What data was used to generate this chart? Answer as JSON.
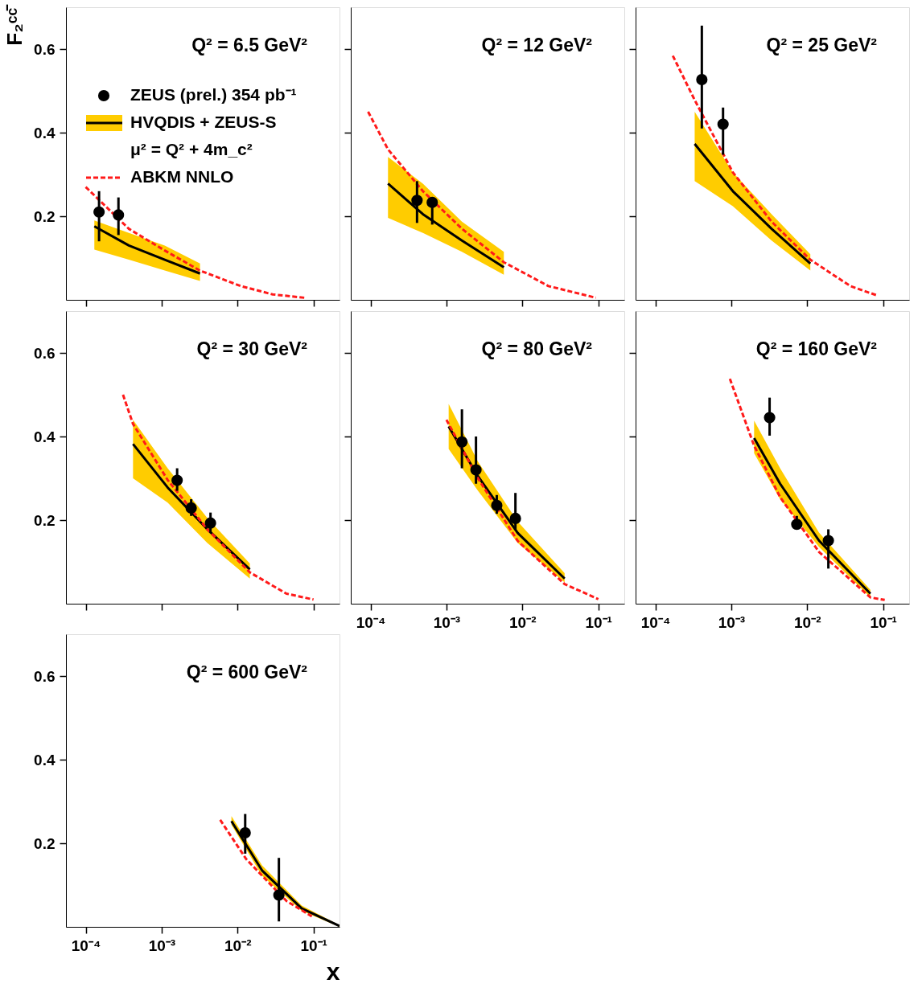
{
  "chart_data": [
    {
      "type": "line",
      "title": "Q² = 6.5 GeV²",
      "ylabel": "F₂ᶜᶜ̄",
      "log": "x",
      "xlim": [
        5.5e-05,
        0.22
      ],
      "ylim": [
        0,
        0.7
      ],
      "xticks": [
        {
          "value": 0.0001,
          "label": null
        },
        {
          "value": 0.001,
          "label": null
        },
        {
          "value": 0.01,
          "label": null
        },
        {
          "value": 0.1,
          "label": null
        }
      ],
      "yticks": [
        0.2,
        0.4,
        0.6
      ],
      "tick_labels": "y",
      "legend": "top left",
      "annotations": [
        "μ² = Q² + 4m_c²"
      ],
      "series": [
        {
          "name": "ZEUS (prel.) 354 pb⁻¹",
          "type": "scatter",
          "marker": "circle",
          "color": "#000000",
          "x": [
            0.00015,
            0.00027
          ],
          "values": [
            0.21,
            0.203
          ],
          "errors": [
            [
              0.14,
              0.26
            ],
            [
              0.155,
              0.245
            ]
          ]
        },
        {
          "name": "HVQDIS + ZEUS-S",
          "type": "line",
          "color": "#000000",
          "x": [
            0.00013,
            0.00037,
            0.0011,
            0.0032
          ],
          "values": [
            0.176,
            0.13,
            0.096,
            0.063
          ],
          "lower": [
            0.12,
            0.096,
            0.07,
            0.045
          ],
          "upper": [
            0.19,
            0.16,
            0.13,
            0.087
          ]
        },
        {
          "name": "ABKM NNLO",
          "type": "line",
          "line_style": "dashed",
          "color": "#ff1a1a",
          "x": [
            0.0001,
            0.00037,
            0.0011,
            0.0032,
            0.011,
            0.029,
            0.076
          ],
          "values": [
            0.27,
            0.17,
            0.118,
            0.07,
            0.033,
            0.013,
            0.005
          ]
        }
      ]
    },
    {
      "type": "line",
      "title": "Q² = 12 GeV²",
      "log": "x",
      "xlim": [
        5.5e-05,
        0.22
      ],
      "ylim": [
        0,
        0.7
      ],
      "xticks": [
        {
          "value": 0.0001,
          "label": null
        },
        {
          "value": 0.001,
          "label": null
        },
        {
          "value": 0.01,
          "label": null
        },
        {
          "value": 0.1,
          "label": null
        }
      ],
      "yticks": [
        0.2,
        0.4,
        0.6
      ],
      "tick_labels": false,
      "series": [
        {
          "type": "scatter",
          "marker": "circle",
          "color": "#000000",
          "x": [
            0.00041,
            0.00065
          ],
          "values": [
            0.238,
            0.233
          ],
          "errors": [
            [
              0.184,
              0.284
            ],
            [
              0.18,
              0.245
            ]
          ]
        },
        {
          "type": "line",
          "color": "#000000",
          "x": [
            0.00017,
            0.00049,
            0.0016,
            0.0057
          ],
          "values": [
            0.278,
            0.205,
            0.142,
            0.078
          ],
          "lower": [
            0.196,
            0.16,
            0.115,
            0.06
          ],
          "upper": [
            0.342,
            0.278,
            0.187,
            0.115
          ]
        },
        {
          "type": "line",
          "line_style": "dashed",
          "color": "#ff1a1a",
          "x": [
            9.3e-05,
            0.00017,
            0.00049,
            0.0016,
            0.0057,
            0.022,
            0.093
          ],
          "values": [
            0.45,
            0.36,
            0.26,
            0.17,
            0.09,
            0.033,
            0.005
          ]
        }
      ]
    },
    {
      "type": "line",
      "title": "Q² = 25 GeV²",
      "log": "x",
      "xlim": [
        5.5e-05,
        0.22
      ],
      "ylim": [
        0,
        0.7
      ],
      "xticks": [
        {
          "value": 0.0001,
          "label": null
        },
        {
          "value": 0.001,
          "label": null
        },
        {
          "value": 0.01,
          "label": null
        },
        {
          "value": 0.1,
          "label": null
        }
      ],
      "yticks": [
        0.2,
        0.4,
        0.6
      ],
      "tick_labels": false,
      "series": [
        {
          "type": "scatter",
          "marker": "circle",
          "color": "#000000",
          "x": [
            0.00041,
            0.00078
          ],
          "values": [
            0.527,
            0.42
          ],
          "errors": [
            [
              0.41,
              0.656
            ],
            [
              0.347,
              0.46
            ]
          ]
        },
        {
          "type": "line",
          "color": "#000000",
          "x": [
            0.00033,
            0.00105,
            0.0034,
            0.011
          ],
          "values": [
            0.373,
            0.26,
            0.17,
            0.087
          ],
          "lower": [
            0.284,
            0.224,
            0.142,
            0.07
          ],
          "upper": [
            0.45,
            0.305,
            0.205,
            0.109
          ]
        },
        {
          "type": "line",
          "line_style": "dashed",
          "color": "#ff1a1a",
          "x": [
            0.00017,
            0.00033,
            0.00105,
            0.0034,
            0.011,
            0.037,
            0.085
          ],
          "values": [
            0.584,
            0.478,
            0.305,
            0.187,
            0.096,
            0.033,
            0.01
          ]
        }
      ]
    },
    {
      "type": "line",
      "title": "Q² = 30 GeV²",
      "log": "x",
      "xlim": [
        5.5e-05,
        0.22
      ],
      "ylim": [
        0,
        0.7
      ],
      "xticks": [
        {
          "value": 0.0001,
          "label": null
        },
        {
          "value": 0.001,
          "label": null
        },
        {
          "value": 0.01,
          "label": null
        },
        {
          "value": 0.1,
          "label": null
        }
      ],
      "yticks": [
        0.2,
        0.4,
        0.6
      ],
      "tick_labels": "y",
      "series": [
        {
          "type": "scatter",
          "marker": "circle",
          "color": "#000000",
          "x": [
            0.0016,
            0.00245,
            0.0044
          ],
          "values": [
            0.295,
            0.229,
            0.193
          ],
          "errors": [
            [
              0.27,
              0.324
            ],
            [
              0.21,
              0.25
            ],
            [
              0.169,
              0.218
            ]
          ]
        },
        {
          "type": "line",
          "color": "#000000",
          "x": [
            0.00042,
            0.0012,
            0.004,
            0.0145
          ],
          "values": [
            0.382,
            0.278,
            0.178,
            0.082
          ],
          "lower": [
            0.3,
            0.242,
            0.145,
            0.06
          ],
          "upper": [
            0.44,
            0.324,
            0.205,
            0.096
          ]
        },
        {
          "type": "line",
          "line_style": "dashed",
          "color": "#ff1a1a",
          "x": [
            0.00031,
            0.00042,
            0.0012,
            0.004,
            0.0145,
            0.044,
            0.1
          ],
          "values": [
            0.5,
            0.43,
            0.296,
            0.178,
            0.075,
            0.024,
            0.01
          ]
        }
      ]
    },
    {
      "type": "line",
      "title": "Q² = 80 GeV²",
      "log": "x",
      "xlim": [
        5.5e-05,
        0.22
      ],
      "ylim": [
        0,
        0.7
      ],
      "xticks": [
        {
          "value": 0.0001,
          "label": "10⁻⁴"
        },
        {
          "value": 0.001,
          "label": "10⁻³"
        },
        {
          "value": 0.01,
          "label": "10⁻²"
        },
        {
          "value": 0.1,
          "label": "10⁻¹"
        }
      ],
      "yticks": [
        0.2,
        0.4,
        0.6
      ],
      "tick_labels": "x",
      "series": [
        {
          "type": "scatter",
          "marker": "circle",
          "color": "#000000",
          "x": [
            0.0016,
            0.00245,
            0.0046,
            0.0081
          ],
          "values": [
            0.387,
            0.32,
            0.235,
            0.204
          ],
          "errors": [
            [
              0.324,
              0.465
            ],
            [
              0.287,
              0.4
            ],
            [
              0.215,
              0.26
            ],
            [
              0.178,
              0.265
            ]
          ]
        },
        {
          "type": "line",
          "color": "#000000",
          "x": [
            0.00107,
            0.0026,
            0.0087,
            0.036
          ],
          "values": [
            0.424,
            0.305,
            0.169,
            0.06
          ],
          "lower": [
            0.37,
            0.27,
            0.145,
            0.051
          ],
          "upper": [
            0.478,
            0.34,
            0.196,
            0.073
          ]
        },
        {
          "type": "line",
          "line_style": "dashed",
          "color": "#ff1a1a",
          "x": [
            0.001,
            0.0026,
            0.0087,
            0.036,
            0.1
          ],
          "values": [
            0.44,
            0.3,
            0.15,
            0.047,
            0.011
          ]
        }
      ]
    },
    {
      "type": "line",
      "title": "Q² = 160 GeV²",
      "log": "x",
      "xlim": [
        5.5e-05,
        0.22
      ],
      "ylim": [
        0,
        0.7
      ],
      "xticks": [
        {
          "value": 0.0001,
          "label": "10⁻⁴"
        },
        {
          "value": 0.001,
          "label": "10⁻³"
        },
        {
          "value": 0.01,
          "label": "10⁻²"
        },
        {
          "value": 0.1,
          "label": "10⁻¹"
        }
      ],
      "yticks": [
        0.2,
        0.4,
        0.6
      ],
      "tick_labels": "x",
      "series": [
        {
          "type": "scatter",
          "marker": "circle",
          "color": "#000000",
          "x": [
            0.0032,
            0.0073,
            0.019
          ],
          "values": [
            0.445,
            0.19,
            0.151
          ],
          "errors": [
            [
              0.402,
              0.493
            ],
            [
              0.178,
              0.21
            ],
            [
              0.084,
              0.178
            ]
          ]
        },
        {
          "type": "line",
          "color": "#000000",
          "x": [
            0.002,
            0.0044,
            0.0143,
            0.068
          ],
          "values": [
            0.396,
            0.287,
            0.151,
            0.024
          ],
          "lower": [
            0.36,
            0.25,
            0.136,
            0.015
          ],
          "upper": [
            0.438,
            0.324,
            0.17,
            0.033
          ]
        },
        {
          "type": "line",
          "line_style": "dashed",
          "color": "#ff1a1a",
          "x": [
            0.00096,
            0.002,
            0.0044,
            0.0143,
            0.068,
            0.105
          ],
          "values": [
            0.538,
            0.378,
            0.255,
            0.124,
            0.015,
            0.009
          ]
        }
      ]
    },
    {
      "type": "line",
      "title": "Q² = 600 GeV²",
      "xlabel": "x",
      "log": "x",
      "xlim": [
        5.5e-05,
        0.22
      ],
      "ylim": [
        0,
        0.7
      ],
      "xticks": [
        {
          "value": 0.0001,
          "label": "10⁻⁴"
        },
        {
          "value": 0.001,
          "label": "10⁻³"
        },
        {
          "value": 0.01,
          "label": "10⁻²"
        },
        {
          "value": 0.1,
          "label": "10⁻¹"
        }
      ],
      "yticks": [
        0.2,
        0.4,
        0.6
      ],
      "series": [
        {
          "type": "scatter",
          "marker": "circle",
          "color": "#000000",
          "x": [
            0.0126,
            0.035
          ],
          "values": [
            0.225,
            0.076
          ],
          "errors": [
            [
              0.175,
              0.27
            ],
            [
              0.013,
              0.165
            ]
          ]
        },
        {
          "type": "line",
          "color": "#000000",
          "x": [
            0.0083,
            0.021,
            0.07,
            0.22
          ],
          "values": [
            0.253,
            0.135,
            0.044,
            0.002
          ],
          "lower": [
            0.244,
            0.122,
            0.038,
            0.0
          ],
          "upper": [
            0.265,
            0.147,
            0.051,
            0.004
          ]
        },
        {
          "type": "line",
          "line_style": "dashed",
          "color": "#ff1a1a",
          "x": [
            0.0059,
            0.013,
            0.044,
            0.095
          ],
          "values": [
            0.256,
            0.162,
            0.062,
            0.025
          ]
        }
      ]
    }
  ]
}
